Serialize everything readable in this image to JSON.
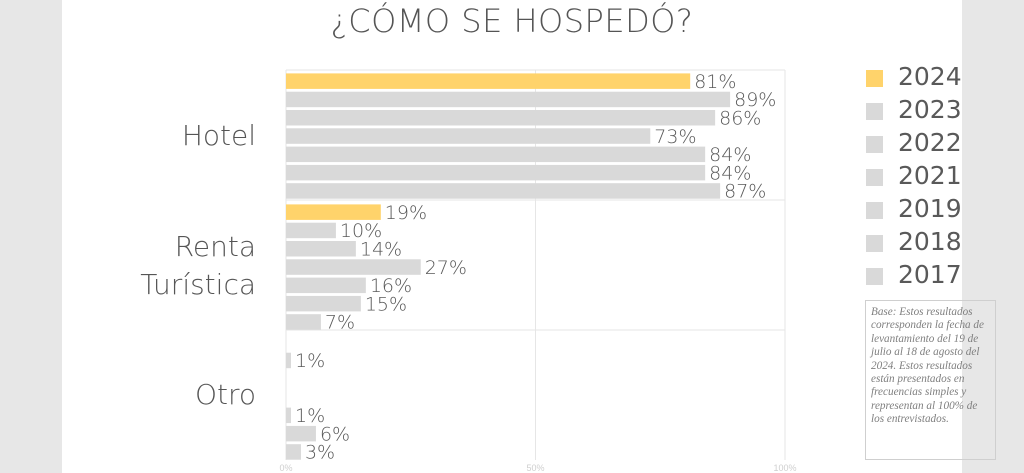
{
  "title": "¿CÓMO SE HOSPEDÓ?",
  "note": "Base: Estos resultados corresponden la fecha de levantamiento del 19 de julio al 18 de agosto del 2024. Estos resultados están presentados en frecuencias simples y representan al 100% de los entrevistados.",
  "legend": [
    {
      "label": "2024",
      "color": "#ffd36b"
    },
    {
      "label": "2023",
      "color": "#d9d9d9"
    },
    {
      "label": "2022",
      "color": "#d9d9d9"
    },
    {
      "label": "2021",
      "color": "#d9d9d9"
    },
    {
      "label": "2019",
      "color": "#d9d9d9"
    },
    {
      "label": "2018",
      "color": "#d9d9d9"
    },
    {
      "label": "2017",
      "color": "#d9d9d9"
    }
  ],
  "chart_data": {
    "type": "bar",
    "orientation": "horizontal",
    "title": "¿CÓMO SE HOSPEDÓ?",
    "categories": [
      "Hotel",
      "Renta Turística",
      "Otro"
    ],
    "xlim": [
      0,
      100
    ],
    "x_ticks": [
      "0%",
      "50%",
      "100%"
    ],
    "grid": true,
    "legend_position": "right",
    "series": [
      {
        "name": "2024",
        "color": "#ffd36b",
        "values": [
          81,
          19,
          null
        ],
        "labels": [
          "81%",
          "19%",
          ""
        ]
      },
      {
        "name": "2023",
        "color": "#d9d9d9",
        "values": [
          89,
          10,
          1
        ],
        "labels": [
          "89%",
          "10%",
          "1%"
        ]
      },
      {
        "name": "2022",
        "color": "#d9d9d9",
        "values": [
          86,
          14,
          null
        ],
        "labels": [
          "86%",
          "14%",
          ""
        ]
      },
      {
        "name": "2021",
        "color": "#d9d9d9",
        "values": [
          73,
          27,
          null
        ],
        "labels": [
          "73%",
          "27%",
          ""
        ]
      },
      {
        "name": "2019",
        "color": "#d9d9d9",
        "values": [
          84,
          16,
          1
        ],
        "labels": [
          "84%",
          "16%",
          "1%"
        ]
      },
      {
        "name": "2018",
        "color": "#d9d9d9",
        "values": [
          84,
          15,
          6
        ],
        "labels": [
          "84%",
          "15%",
          "6%"
        ]
      },
      {
        "name": "2017",
        "color": "#d9d9d9",
        "values": [
          87,
          7,
          3
        ],
        "labels": [
          "87%",
          "7%",
          "3%"
        ]
      }
    ]
  }
}
